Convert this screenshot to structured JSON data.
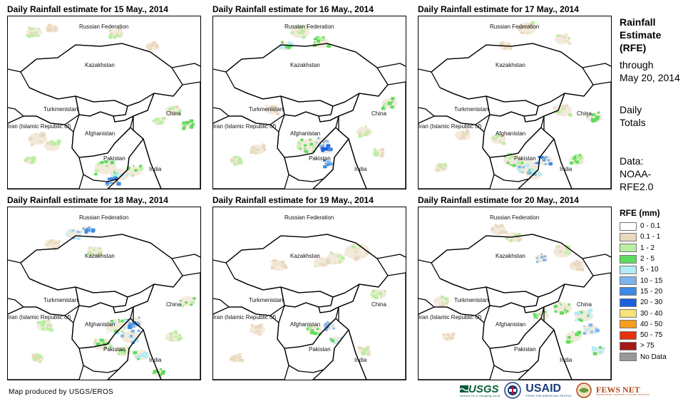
{
  "panels": [
    {
      "title": "Daily Rainfall estimate for 15 May., 2014",
      "rain_profile": "pakistan-south"
    },
    {
      "title": "Daily Rainfall estimate for 16 May., 2014",
      "rain_profile": "afghanistan-east"
    },
    {
      "title": "Daily Rainfall estimate for 17 May., 2014",
      "rain_profile": "pakistan-north"
    },
    {
      "title": "Daily Rainfall estimate for 18 May., 2014",
      "rain_profile": "widespread"
    },
    {
      "title": "Daily Rainfall estimate for 19 May., 2014",
      "rain_profile": "light"
    },
    {
      "title": "Daily Rainfall estimate for 20 May., 2014",
      "rain_profile": "east"
    }
  ],
  "countries": {
    "russia": "Russian Federation",
    "kazakhstan": "Kazakhstan",
    "turkmenistan": "Turkmenistan",
    "china": "China",
    "iran": "Iran (Islamic Republic of)",
    "afghanistan": "Afghanistan",
    "pakistan": "Pakistan",
    "india": "India"
  },
  "side": {
    "title_line1": "Rainfall",
    "title_line2": "Estimate",
    "title_line3": "(RFE)",
    "through": "through",
    "date": "May 20, 2014",
    "totals_line1": "Daily",
    "totals_line2": "Totals",
    "data_line1": "Data:",
    "data_line2": "NOAA-",
    "data_line3": "RFE2.0"
  },
  "legend": {
    "title": "RFE (mm)",
    "items": [
      {
        "label": "0 - 0.1",
        "color": "#ffffff"
      },
      {
        "label": "0.1 - 1",
        "color": "#ead9bf"
      },
      {
        "label": "1 - 2",
        "color": "#b8f0a0"
      },
      {
        "label": "2 - 5",
        "color": "#5fdb5f"
      },
      {
        "label": "5 - 10",
        "color": "#b3ecf5"
      },
      {
        "label": "10 - 15",
        "color": "#7db3ee"
      },
      {
        "label": "15 - 20",
        "color": "#3d8ae6"
      },
      {
        "label": "20 - 30",
        "color": "#1c5fe0"
      },
      {
        "label": "30 - 40",
        "color": "#f7e27a"
      },
      {
        "label": "40 - 50",
        "color": "#f59d1c"
      },
      {
        "label": "50 - 75",
        "color": "#e8300c"
      },
      {
        "label": "> 75",
        "color": "#a31a14"
      },
      {
        "label": "No Data",
        "color": "#999999"
      }
    ]
  },
  "credit": "Map produced by USGS/EROS",
  "logos": {
    "usgs": "USGS",
    "usgs_sub": "science for a changing world",
    "usaid": "USAID",
    "usaid_sub": "FROM THE AMERICAN PEOPLE",
    "fews": "FEWS NET",
    "fews_sub": "FAMINE EARLY WARNING SYSTEMS NETWORK"
  }
}
